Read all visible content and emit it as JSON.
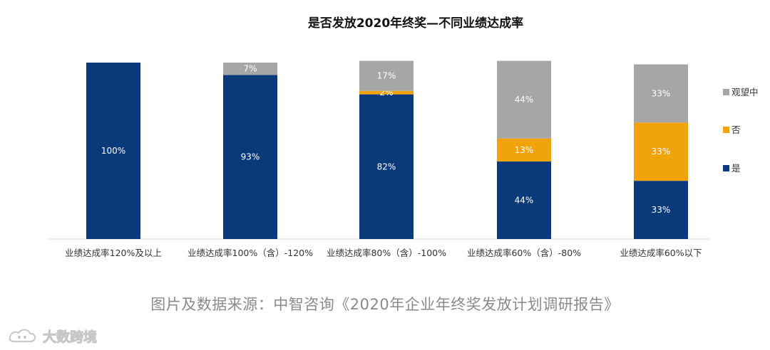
{
  "chart_data": {
    "type": "stacked-bar",
    "title": "是否发放2020年终奖—不同业绩达成率",
    "categories": [
      "业绩达成率120%及以上",
      "业绩达成率100%（含）-120%",
      "业绩达成率80%（含）-100%",
      "业绩达成率60%（含）-80%",
      "业绩达成率60%以下"
    ],
    "series": [
      {
        "name": "是",
        "color": "#0b3a7a",
        "values": [
          100,
          93,
          82,
          44,
          33
        ],
        "labels": [
          "100%",
          "93%",
          "82%",
          "44%",
          "33%"
        ]
      },
      {
        "name": "否",
        "color": "#f0a30a",
        "values": [
          0,
          0,
          2,
          13,
          33
        ],
        "labels": [
          "",
          "",
          "2%",
          "13%",
          "33%"
        ]
      },
      {
        "name": "观望中",
        "color": "#a6a6a6",
        "values": [
          0,
          7,
          17,
          44,
          33
        ],
        "labels": [
          "",
          "7%",
          "17%",
          "44%",
          "33%"
        ]
      }
    ],
    "legend_order": [
      "观望中",
      "否",
      "是"
    ],
    "legend_position": "right",
    "ylim": [
      0,
      100
    ],
    "grid": false
  },
  "source_text": "图片及数据来源：中智咨询《2020年企业年终奖发放计划调研报告》",
  "watermark": {
    "text": "大数跨境"
  }
}
